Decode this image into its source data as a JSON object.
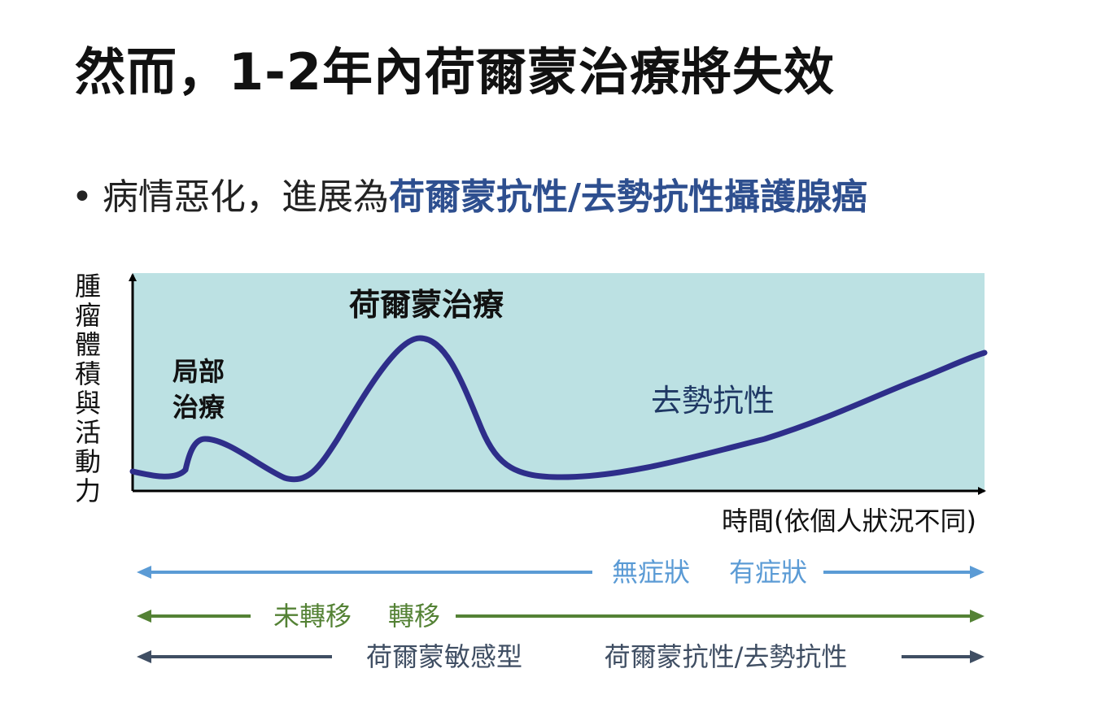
{
  "title": "然而，1-2年內荷爾蒙治療將失效",
  "bullet": {
    "plain": "病情惡化，進展為",
    "highlight": "荷爾蒙抗性/去勢抗性攝護腺癌"
  },
  "diagram": {
    "y_axis_label": "腫瘤體積與活動力",
    "x_axis_label": "時間(依個人狀況不同)",
    "annotations": {
      "local_therapy_line1": "局部",
      "local_therapy_line2": "治療",
      "hormone_therapy": "荷爾蒙治療",
      "castration_resistant": "去勢抗性"
    },
    "timelines": [
      {
        "id": "symptom",
        "left_label": "無症狀",
        "right_label": "有症狀",
        "color": "#5b9bd5"
      },
      {
        "id": "metastasis",
        "left_label": "未轉移",
        "right_label": "轉移",
        "color": "#548235"
      },
      {
        "id": "sensitivity",
        "left_label": "荷爾蒙敏感型",
        "right_label": "荷爾蒙抗性/去勢抗性",
        "color": "#3f4e63"
      }
    ],
    "colors": {
      "plot_bg": "#bce1e3",
      "curve": "#2e2e8a",
      "axis": "#000000",
      "annotation_blue": "#1f3864"
    }
  }
}
